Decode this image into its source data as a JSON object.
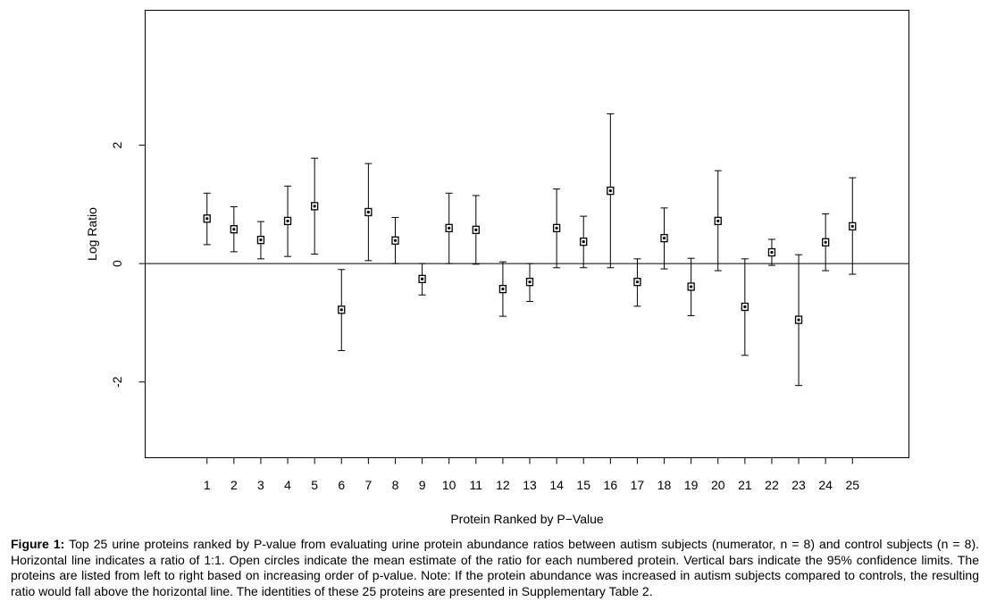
{
  "chart_data": {
    "type": "scatter",
    "title": "",
    "xlabel": "Protein Ranked by P−Value",
    "ylabel": "Log Ratio",
    "x_ticks": [
      "1",
      "2",
      "3",
      "4",
      "5",
      "6",
      "7",
      "8",
      "9",
      "10",
      "11",
      "12",
      "13",
      "14",
      "15",
      "16",
      "17",
      "18",
      "19",
      "20",
      "21",
      "22",
      "23",
      "24",
      "25"
    ],
    "y_ticks": [
      {
        "value": -2,
        "label": "-2"
      },
      {
        "value": 0,
        "label": "0"
      },
      {
        "value": 2,
        "label": "2"
      }
    ],
    "xlim": [
      -1.3,
      27.1
    ],
    "ylim": [
      -3.28,
      4.28
    ],
    "reference_line": 0,
    "grid": false,
    "series": [
      {
        "points": [
          {
            "x": 1,
            "y": 0.76,
            "lower": 0.32,
            "upper": 1.19
          },
          {
            "x": 2,
            "y": 0.58,
            "lower": 0.2,
            "upper": 0.96
          },
          {
            "x": 3,
            "y": 0.4,
            "lower": 0.08,
            "upper": 0.71
          },
          {
            "x": 4,
            "y": 0.72,
            "lower": 0.12,
            "upper": 1.31
          },
          {
            "x": 5,
            "y": 0.97,
            "lower": 0.16,
            "upper": 1.78
          },
          {
            "x": 6,
            "y": -0.78,
            "lower": -1.47,
            "upper": -0.1
          },
          {
            "x": 7,
            "y": 0.87,
            "lower": 0.05,
            "upper": 1.69
          },
          {
            "x": 8,
            "y": 0.39,
            "lower": 0.0,
            "upper": 0.78
          },
          {
            "x": 9,
            "y": -0.26,
            "lower": -0.53,
            "upper": 0.0
          },
          {
            "x": 10,
            "y": 0.6,
            "lower": 0.0,
            "upper": 1.19
          },
          {
            "x": 11,
            "y": 0.57,
            "lower": -0.01,
            "upper": 1.15
          },
          {
            "x": 12,
            "y": -0.43,
            "lower": -0.89,
            "upper": 0.03
          },
          {
            "x": 13,
            "y": -0.31,
            "lower": -0.64,
            "upper": 0.0
          },
          {
            "x": 14,
            "y": 0.6,
            "lower": -0.07,
            "upper": 1.26
          },
          {
            "x": 15,
            "y": 0.37,
            "lower": -0.07,
            "upper": 0.8
          },
          {
            "x": 16,
            "y": 1.23,
            "lower": -0.07,
            "upper": 2.53
          },
          {
            "x": 17,
            "y": -0.31,
            "lower": -0.72,
            "upper": 0.08
          },
          {
            "x": 18,
            "y": 0.43,
            "lower": -0.09,
            "upper": 0.94
          },
          {
            "x": 19,
            "y": -0.39,
            "lower": -0.88,
            "upper": 0.09
          },
          {
            "x": 20,
            "y": 0.72,
            "lower": -0.12,
            "upper": 1.57
          },
          {
            "x": 21,
            "y": -0.73,
            "lower": -1.55,
            "upper": 0.08
          },
          {
            "x": 22,
            "y": 0.19,
            "lower": -0.03,
            "upper": 0.41
          },
          {
            "x": 23,
            "y": -0.95,
            "lower": -2.06,
            "upper": 0.15
          },
          {
            "x": 24,
            "y": 0.36,
            "lower": -0.12,
            "upper": 0.84
          },
          {
            "x": 25,
            "y": 0.63,
            "lower": -0.18,
            "upper": 1.45
          }
        ]
      }
    ]
  },
  "caption": {
    "label": "Figure 1:",
    "text": " Top 25 urine proteins ranked by P-value from evaluating urine protein abundance ratios between autism subjects (numerator, n = 8) and control subjects (n = 8). Horizontal line indicates a ratio of 1:1. Open circles indicate the mean estimate of the ratio for each numbered protein. Vertical bars indicate the 95% confidence limits. The proteins are listed from left to right based on increasing order of p-value. Note: If the protein abundance was increased in autism subjects compared to controls, the resulting ratio would fall above the horizontal line. The identities of these 25 proteins are presented in Supplementary Table 2."
  }
}
